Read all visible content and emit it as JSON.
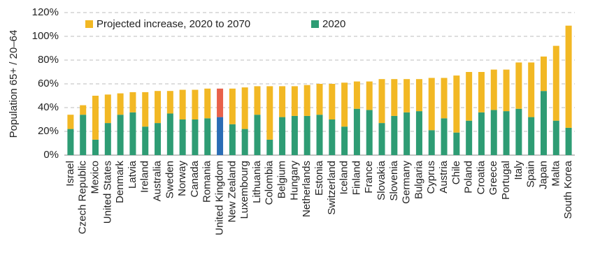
{
  "chart_data": {
    "type": "stacked_bar",
    "y_label": "Population 65+ / 20–64",
    "categories": [
      "Israel",
      "Czech Republic",
      "Mexico",
      "United States",
      "Denmark",
      "Latvia",
      "Ireland",
      "Australia",
      "Sweden",
      "Norway",
      "Canada",
      "Romania",
      "United Kingdom",
      "New Zealand",
      "Luxembourg",
      "Lithuania",
      "Colombia",
      "Belgium",
      "Hungary",
      "Netherlands",
      "Estonia",
      "Switzerland",
      "Iceland",
      "Finland",
      "France",
      "Slovakia",
      "Slovenia",
      "Germany",
      "Bulgaria",
      "Cyprus",
      "Austria",
      "Chile",
      "Poland",
      "Croatia",
      "Greece",
      "Portugal",
      "Italy",
      "Spain",
      "Japan",
      "Malta",
      "South Korea"
    ],
    "series": [
      {
        "name": "Projected increase, 2020 to 2070",
        "color": "#f2b824",
        "highlight_color": "#e8614a",
        "values": [
          12,
          8,
          37,
          24,
          18,
          17,
          29,
          27,
          19,
          25,
          25,
          25,
          24,
          30,
          35,
          24,
          45,
          26,
          25,
          26,
          26,
          30,
          37,
          23,
          24,
          37,
          31,
          28,
          27,
          44,
          34,
          48,
          41,
          34,
          34,
          35,
          39,
          46,
          29,
          63,
          86
        ]
      },
      {
        "name": "2020",
        "color": "#2e9c74",
        "highlight_color": "#2a6db5",
        "values": [
          22,
          34,
          13,
          27,
          34,
          36,
          24,
          27,
          35,
          30,
          30,
          31,
          32,
          26,
          22,
          34,
          13,
          32,
          33,
          33,
          34,
          30,
          24,
          39,
          38,
          27,
          33,
          36,
          37,
          21,
          31,
          19,
          29,
          36,
          38,
          37,
          39,
          32,
          54,
          29,
          23
        ]
      }
    ],
    "highlight_category": "United Kingdom",
    "ylim": [
      0,
      120
    ],
    "yticks": [
      {
        "value": 0,
        "label": "0%"
      },
      {
        "value": 20,
        "label": "20%"
      },
      {
        "value": 40,
        "label": "40%"
      },
      {
        "value": 60,
        "label": "60%"
      },
      {
        "value": 80,
        "label": "80%"
      },
      {
        "value": 100,
        "label": "100%"
      },
      {
        "value": 120,
        "label": "120%"
      }
    ],
    "grid": true
  }
}
